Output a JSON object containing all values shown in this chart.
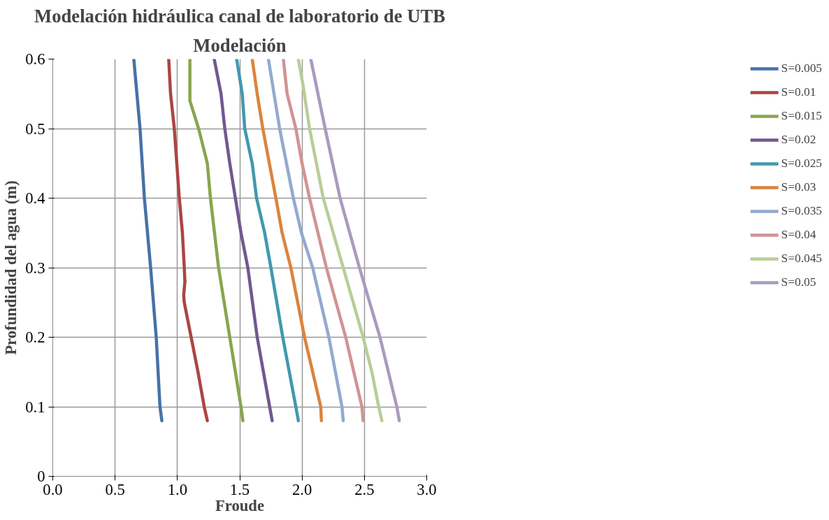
{
  "chart_data": {
    "type": "line",
    "title": "Modelación hidráulica canal de laboratorio de UTB",
    "subtitle": "Modelación",
    "xlabel": "Froude",
    "ylabel": "Profundidad del agua (m)",
    "xlim": [
      0,
      3
    ],
    "ylim": [
      0,
      0.6
    ],
    "xticks": [
      {
        "value": 0,
        "label": "0.0"
      },
      0.5,
      {
        "value": 1,
        "label": "1.0"
      },
      1.5,
      {
        "value": 2,
        "label": "2.0"
      },
      2.5,
      {
        "value": 3,
        "label": "3.0"
      }
    ],
    "yticks": [
      0,
      0.1,
      0.2,
      0.3,
      0.4,
      0.5,
      0.6
    ],
    "grid": true,
    "legend": "right",
    "marker": "none",
    "line_style": "solid",
    "series": [
      {
        "name": "S=0.005",
        "color": "#4572a7",
        "x": [
          0.65,
          0.7,
          0.735,
          0.785,
          0.83,
          0.86,
          0.875
        ],
        "values": [
          0.6,
          0.5,
          0.4,
          0.3,
          0.2,
          0.1,
          0.08
        ]
      },
      {
        "name": "S=0.01",
        "color": "#aa4643",
        "x": [
          0.93,
          0.945,
          0.975,
          1.015,
          1.04,
          1.055,
          1.06,
          1.05,
          1.055,
          1.11,
          1.165,
          1.215,
          1.24
        ],
        "values": [
          0.6,
          0.55,
          0.5,
          0.4,
          0.35,
          0.3,
          0.28,
          0.26,
          0.25,
          0.2,
          0.15,
          0.1,
          0.08
        ]
      },
      {
        "name": "S=0.015",
        "color": "#89a54e",
        "x": [
          1.1,
          1.1,
          1.17,
          1.24,
          1.265,
          1.33,
          1.42,
          1.51,
          1.525
        ],
        "values": [
          0.6,
          0.54,
          0.5,
          0.45,
          0.4,
          0.3,
          0.2,
          0.1,
          0.08
        ]
      },
      {
        "name": "S=0.02",
        "color": "#71588f",
        "x": [
          1.295,
          1.35,
          1.38,
          1.42,
          1.465,
          1.51,
          1.565,
          1.64,
          1.74,
          1.76
        ],
        "values": [
          0.6,
          0.55,
          0.5,
          0.45,
          0.4,
          0.35,
          0.3,
          0.2,
          0.1,
          0.08
        ]
      },
      {
        "name": "S=0.025",
        "color": "#4198af",
        "x": [
          1.475,
          1.52,
          1.54,
          1.6,
          1.635,
          1.7,
          1.75,
          1.845,
          1.95,
          1.97
        ],
        "values": [
          0.6,
          0.55,
          0.5,
          0.45,
          0.4,
          0.35,
          0.3,
          0.2,
          0.1,
          0.08
        ]
      },
      {
        "name": "S=0.03",
        "color": "#db843d",
        "x": [
          1.6,
          1.64,
          1.685,
          1.79,
          1.84,
          1.91,
          2.02,
          2.085,
          2.15,
          2.155
        ],
        "values": [
          0.6,
          0.55,
          0.5,
          0.4,
          0.35,
          0.3,
          0.2,
          0.15,
          0.1,
          0.08
        ]
      },
      {
        "name": "S=0.035",
        "color": "#93a9cf",
        "x": [
          1.73,
          1.82,
          1.93,
          1.995,
          2.085,
          2.215,
          2.32,
          2.33
        ],
        "values": [
          0.6,
          0.5,
          0.4,
          0.35,
          0.3,
          0.2,
          0.1,
          0.08
        ]
      },
      {
        "name": "S=0.04",
        "color": "#d19392",
        "x": [
          1.85,
          1.88,
          1.95,
          2.0,
          2.06,
          2.195,
          2.35,
          2.48,
          2.49
        ],
        "values": [
          0.6,
          0.55,
          0.5,
          0.45,
          0.4,
          0.3,
          0.2,
          0.1,
          0.08
        ]
      },
      {
        "name": "S=0.045",
        "color": "#b9cd96",
        "x": [
          1.97,
          2.01,
          2.06,
          2.17,
          2.33,
          2.49,
          2.56,
          2.615,
          2.64
        ],
        "values": [
          0.6,
          0.56,
          0.5,
          0.4,
          0.3,
          0.2,
          0.15,
          0.1,
          0.08
        ]
      },
      {
        "name": "S=0.05",
        "color": "#a99bbd",
        "x": [
          2.07,
          2.185,
          2.305,
          2.46,
          2.625,
          2.76,
          2.78
        ],
        "values": [
          0.6,
          0.5,
          0.4,
          0.3,
          0.2,
          0.1,
          0.08
        ]
      }
    ]
  }
}
